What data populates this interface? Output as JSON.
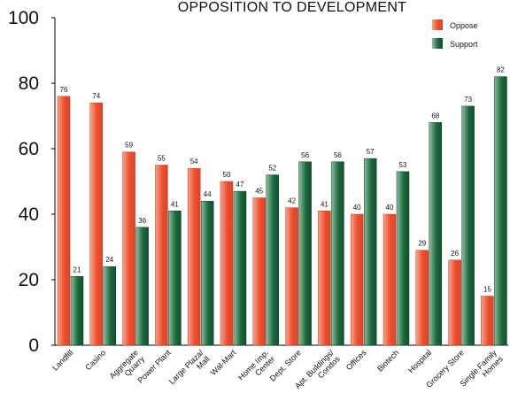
{
  "chart_data": {
    "type": "bar",
    "title": "OPPOSITION TO DEVELOPMENT",
    "xlabel": "",
    "ylabel": "",
    "ylim": [
      0,
      100
    ],
    "yticks": [
      0,
      20,
      40,
      60,
      80,
      100
    ],
    "categories": [
      "Landfill",
      "Casino",
      "Aggregate Quarry",
      "Power Plant",
      "Large Plaza/ Mall",
      "Wal-Mart",
      "Home Imp. Center",
      "Dept. Store",
      "Apt. Buildings/ Condos",
      "Offices",
      "Biotech",
      "Hospital",
      "Grocery Store",
      "Single Family Homes"
    ],
    "category_lines": [
      [
        "Landfill"
      ],
      [
        "Casino"
      ],
      [
        "Aggregate",
        "Quarry"
      ],
      [
        "Power Plant"
      ],
      [
        "Large Plaza/",
        "Mall"
      ],
      [
        "Wal-Mart"
      ],
      [
        "Home Imp.",
        "Center"
      ],
      [
        "Dept. Store"
      ],
      [
        "Apt. Buildings/",
        "Condos"
      ],
      [
        "Offices"
      ],
      [
        "Biotech"
      ],
      [
        "Hospital"
      ],
      [
        "Grocery Store"
      ],
      [
        "Single Family",
        "Homes"
      ]
    ],
    "series": [
      {
        "name": "Oppose",
        "color": "#f2674a",
        "values": [
          76,
          74,
          59,
          55,
          54,
          50,
          45,
          42,
          41,
          40,
          40,
          29,
          26,
          15
        ]
      },
      {
        "name": "Support",
        "color": "#2e7d4f",
        "values": [
          21,
          24,
          36,
          41,
          44,
          47,
          52,
          56,
          56,
          57,
          53,
          68,
          73,
          82
        ]
      }
    ],
    "legend": {
      "position": "top-right"
    },
    "grid": false
  }
}
